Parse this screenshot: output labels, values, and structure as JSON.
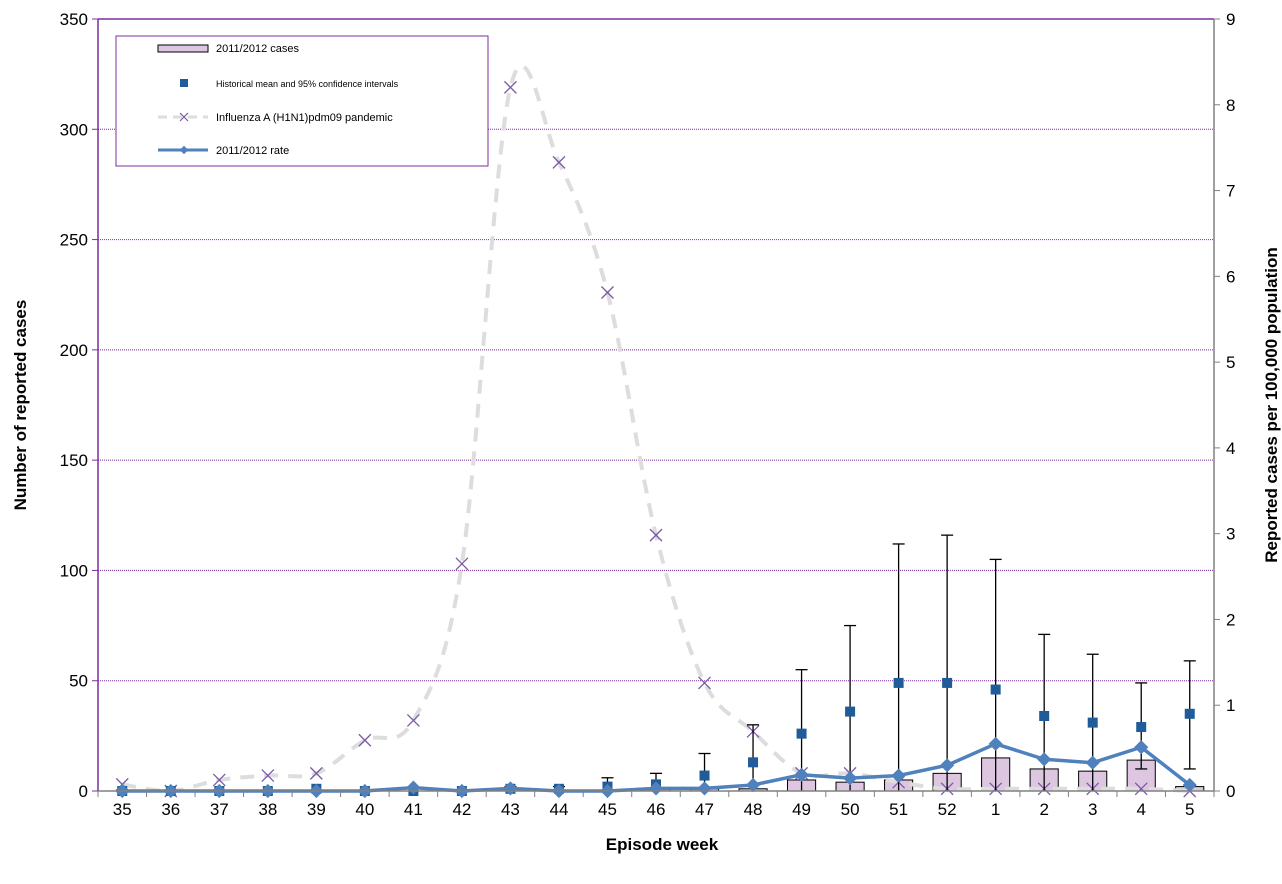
{
  "chart_data": {
    "type": "bar",
    "xlabel": "Episode week",
    "ylabel": "Number of reported cases",
    "y2label": "Reported cases per 100,000 population",
    "categories": [
      "35",
      "36",
      "37",
      "38",
      "39",
      "40",
      "41",
      "42",
      "43",
      "44",
      "45",
      "46",
      "47",
      "48",
      "49",
      "50",
      "51",
      "52",
      "1",
      "2",
      "3",
      "4",
      "5"
    ],
    "ylim": [
      0,
      350
    ],
    "yticks": [
      "0",
      "50",
      "100",
      "150",
      "200",
      "250",
      "300",
      "350"
    ],
    "y2lim": [
      0,
      9
    ],
    "y2ticks": [
      "0",
      "1",
      "2",
      "3",
      "4",
      "5",
      "6",
      "7",
      "8",
      "9"
    ],
    "grid": "horizontal",
    "legend_position": "top-left",
    "series": [
      {
        "name": "2011/2012 cases",
        "kind": "bar",
        "axis": "left",
        "color": "#dcc6e0",
        "values": [
          0,
          0,
          0,
          0,
          0,
          0,
          0,
          0,
          1,
          0,
          0,
          1,
          1,
          1,
          5,
          4,
          5,
          8,
          15,
          10,
          9,
          14,
          2
        ]
      },
      {
        "name": "Historical mean and 95% confidence intervals",
        "kind": "point-errorbar",
        "axis": "left",
        "color": "#1f5c99",
        "values": [
          0,
          0,
          0,
          0,
          1,
          0,
          0,
          0,
          1,
          1,
          2,
          3,
          7,
          13,
          26,
          36,
          49,
          49,
          46,
          34,
          31,
          29,
          35
        ],
        "upper": [
          0,
          0,
          0,
          0,
          1,
          0,
          0,
          0,
          2,
          2,
          6,
          8,
          17,
          30,
          55,
          75,
          112,
          116,
          105,
          71,
          62,
          49,
          59
        ],
        "lower": [
          0,
          0,
          0,
          0,
          0,
          0,
          0,
          0,
          0,
          0,
          0,
          0,
          0,
          0,
          0,
          0,
          0,
          0,
          0,
          0,
          0,
          10,
          10
        ]
      },
      {
        "name": "Influenza A (H1N1)pdm09 pandemic",
        "kind": "dashed-line",
        "axis": "left",
        "color": "#dddddd",
        "marker_color": "#7a5aa6",
        "values": [
          3,
          0,
          5,
          7,
          8,
          23,
          32,
          103,
          319,
          285,
          226,
          116,
          49,
          27,
          8,
          8,
          4,
          1,
          1,
          1,
          1,
          1,
          0
        ]
      },
      {
        "name": "2011/2012 rate",
        "kind": "line",
        "axis": "right",
        "color": "#4f81bd",
        "values": [
          0,
          0,
          0,
          0,
          0,
          0,
          0.04,
          0,
          0.03,
          0,
          0,
          0.03,
          0.03,
          0.07,
          0.19,
          0.15,
          0.18,
          0.3,
          0.55,
          0.37,
          0.33,
          0.51,
          0.07
        ]
      }
    ]
  },
  "colors": {
    "plot_border": "#7b2f9e",
    "gridline": "#7b2f9e",
    "axis": "#808080"
  }
}
